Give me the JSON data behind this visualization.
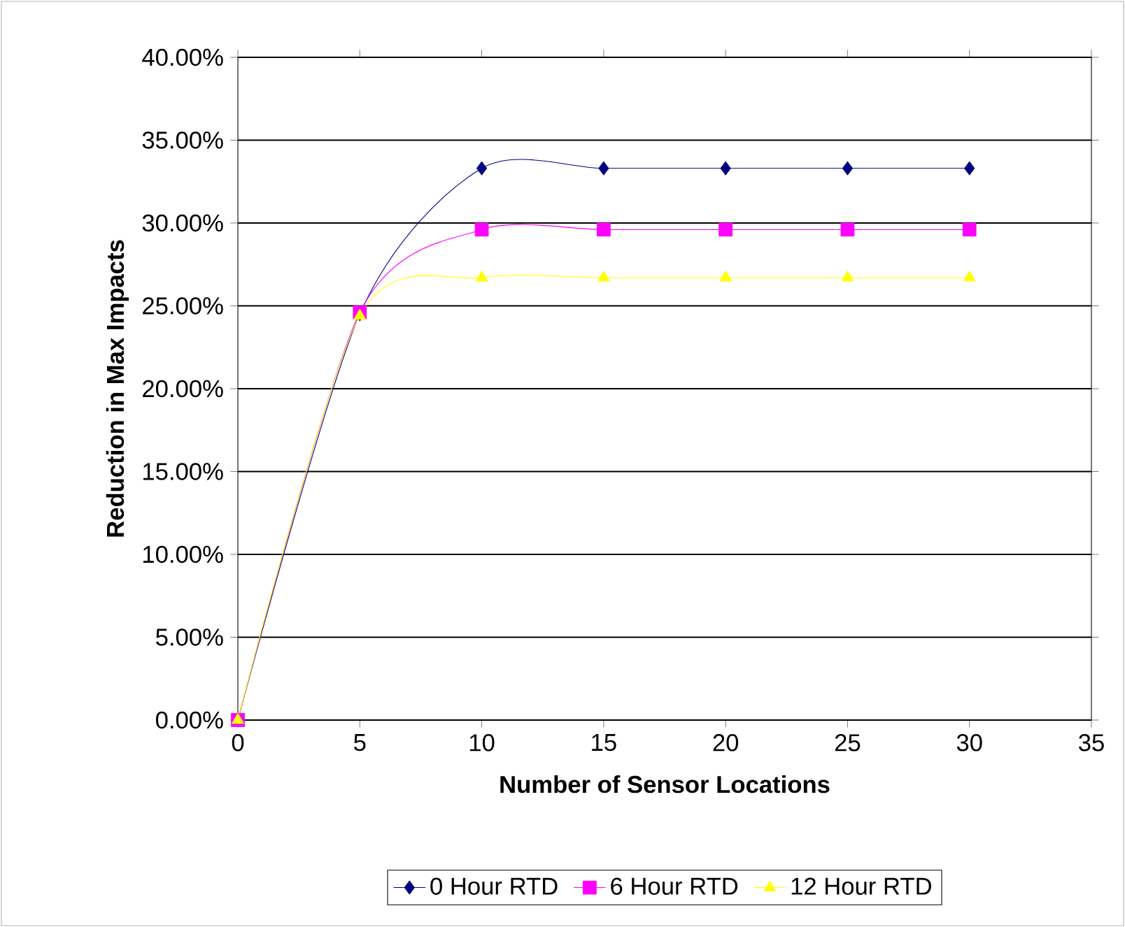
{
  "chart_data": {
    "type": "line",
    "xlabel": "Number of Sensor Locations",
    "ylabel": "Reduction in Max Impacts",
    "x": [
      0,
      5,
      10,
      15,
      20,
      25,
      30
    ],
    "series": [
      {
        "name": "0 Hour RTD",
        "color": "#000080",
        "marker": "diamond",
        "values": [
          0,
          24.5,
          33.3,
          33.3,
          33.3,
          33.3,
          33.3
        ]
      },
      {
        "name": "6 Hour RTD",
        "color": "#ff00ff",
        "marker": "square",
        "values": [
          0,
          24.6,
          29.6,
          29.6,
          29.6,
          29.6,
          29.6
        ]
      },
      {
        "name": "12 Hour RTD",
        "color": "#ffff00",
        "marker": "triangle",
        "values": [
          0,
          24.4,
          26.7,
          26.7,
          26.7,
          26.7,
          26.7
        ]
      }
    ],
    "xlim": [
      0,
      35
    ],
    "xticks": [
      0,
      5,
      10,
      15,
      20,
      25,
      30,
      35
    ],
    "ylim": [
      0,
      40
    ],
    "yticks": [
      {
        "value": 0,
        "label": "0.00%"
      },
      {
        "value": 5,
        "label": "5.00%"
      },
      {
        "value": 10,
        "label": "10.00%"
      },
      {
        "value": 15,
        "label": "15.00%"
      },
      {
        "value": 20,
        "label": "20.00%"
      },
      {
        "value": 25,
        "label": "25.00%"
      },
      {
        "value": 30,
        "label": "30.00%"
      },
      {
        "value": 35,
        "label": "35.00%"
      },
      {
        "value": 40,
        "label": "40.00%"
      }
    ],
    "grid": "y",
    "legend": "bottom",
    "line_style": "solid"
  }
}
